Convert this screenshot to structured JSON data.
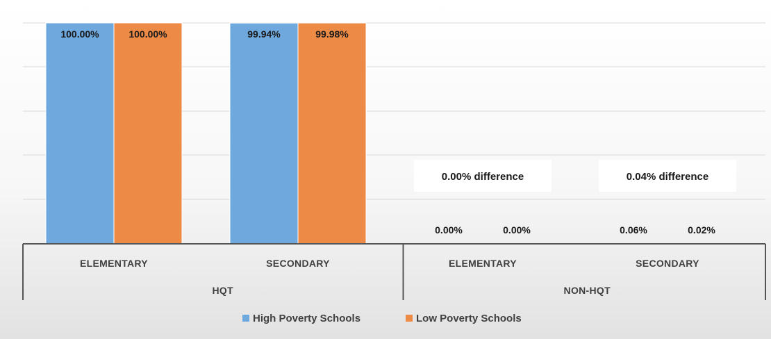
{
  "chart_data": {
    "type": "bar",
    "categories": [
      {
        "group": "HQT",
        "label": "ELEMENTARY"
      },
      {
        "group": "HQT",
        "label": "SECONDARY"
      },
      {
        "group": "NON-HQT",
        "label": "ELEMENTARY"
      },
      {
        "group": "NON-HQT",
        "label": "SECONDARY"
      }
    ],
    "groups": [
      "HQT",
      "NON-HQT"
    ],
    "series": [
      {
        "name": "High Poverty Schools",
        "color": "#6fa8dc",
        "values": [
          100.0,
          99.94,
          0.0,
          0.06
        ],
        "labels": [
          "100.00%",
          "99.94%",
          "0.00%",
          "0.06%"
        ]
      },
      {
        "name": "Low Poverty Schools",
        "color": "#ed8a46",
        "values": [
          100.0,
          99.98,
          0.0,
          0.02
        ],
        "labels": [
          "100.00%",
          "99.98%",
          "0.00%",
          "0.02%"
        ]
      }
    ],
    "ylim": [
      0,
      100
    ],
    "grid": true,
    "legend_position": "bottom",
    "annotations": [
      {
        "category_index": 2,
        "text": "0.00% difference"
      },
      {
        "category_index": 3,
        "text": "0.04% difference"
      }
    ],
    "title": "",
    "xlabel": "",
    "ylabel": ""
  }
}
